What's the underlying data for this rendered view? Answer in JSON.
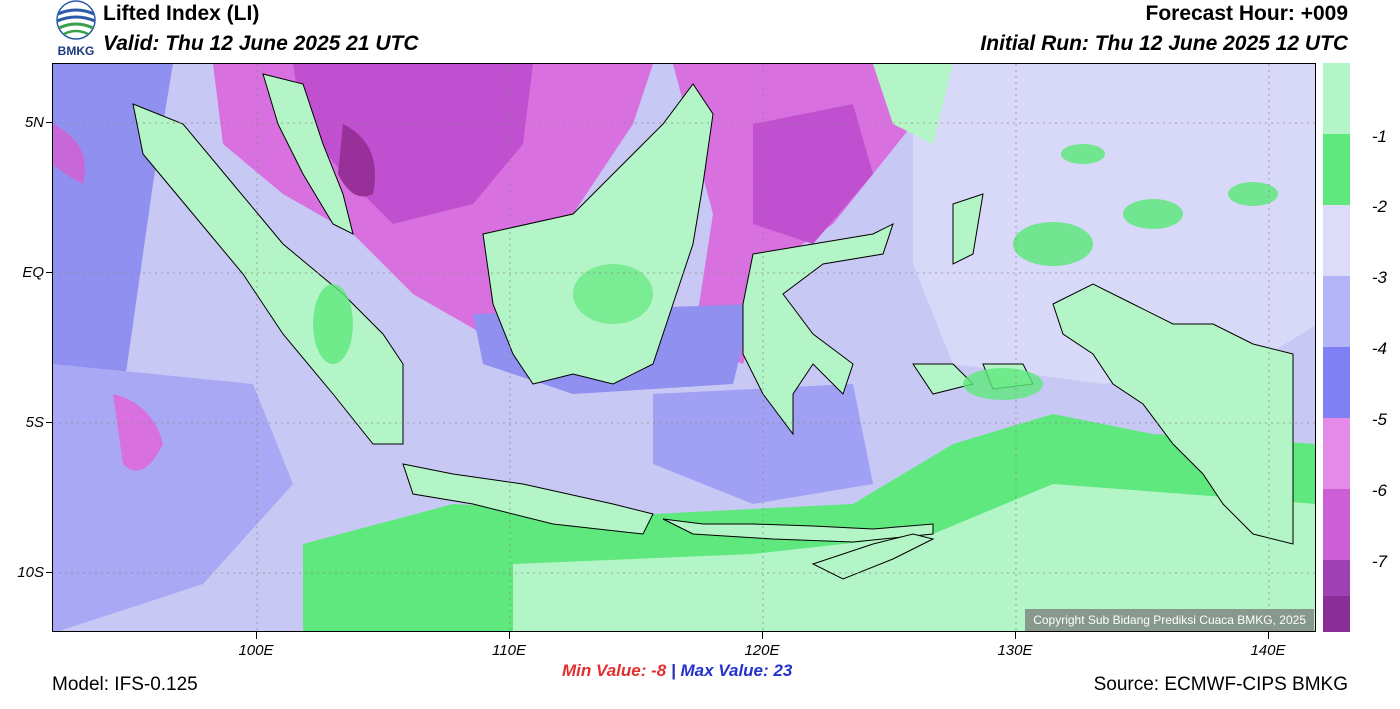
{
  "header": {
    "title": "Lifted Index (LI)",
    "valid": "Valid: Thu 12 June 2025 21 UTC",
    "forecast_hour": "Forecast Hour: +009",
    "initial_run": "Initial Run: Thu 12 June 2025 12 UTC",
    "logo_text": "BMKG"
  },
  "axes": {
    "lat_labels": [
      "5N",
      "EQ",
      "5S",
      "10S"
    ],
    "lon_labels": [
      "100E",
      "110E",
      "120E",
      "130E",
      "140E"
    ]
  },
  "legend": {
    "labels": [
      "-1",
      "-2",
      "-3",
      "-4",
      "-5",
      "-6",
      "-7"
    ],
    "colors": [
      "#b4f5c8",
      "#5fe87d",
      "#dcdcf8",
      "#b4b4f8",
      "#8080f5",
      "#e48ae8",
      "#cc5fd6",
      "#a040b5",
      "#8a2d96"
    ]
  },
  "stats": {
    "min_label": "Min Value:",
    "min_value": "-8",
    "separator": "|",
    "max_label": "Max Value:",
    "max_value": "23"
  },
  "footer": {
    "model": "Model: IFS-0.125",
    "source": "Source: ECMWF-CIPS BMKG",
    "copyright": "Copyright Sub Bidang Prediksi Cuaca BMKG, 2025"
  }
}
